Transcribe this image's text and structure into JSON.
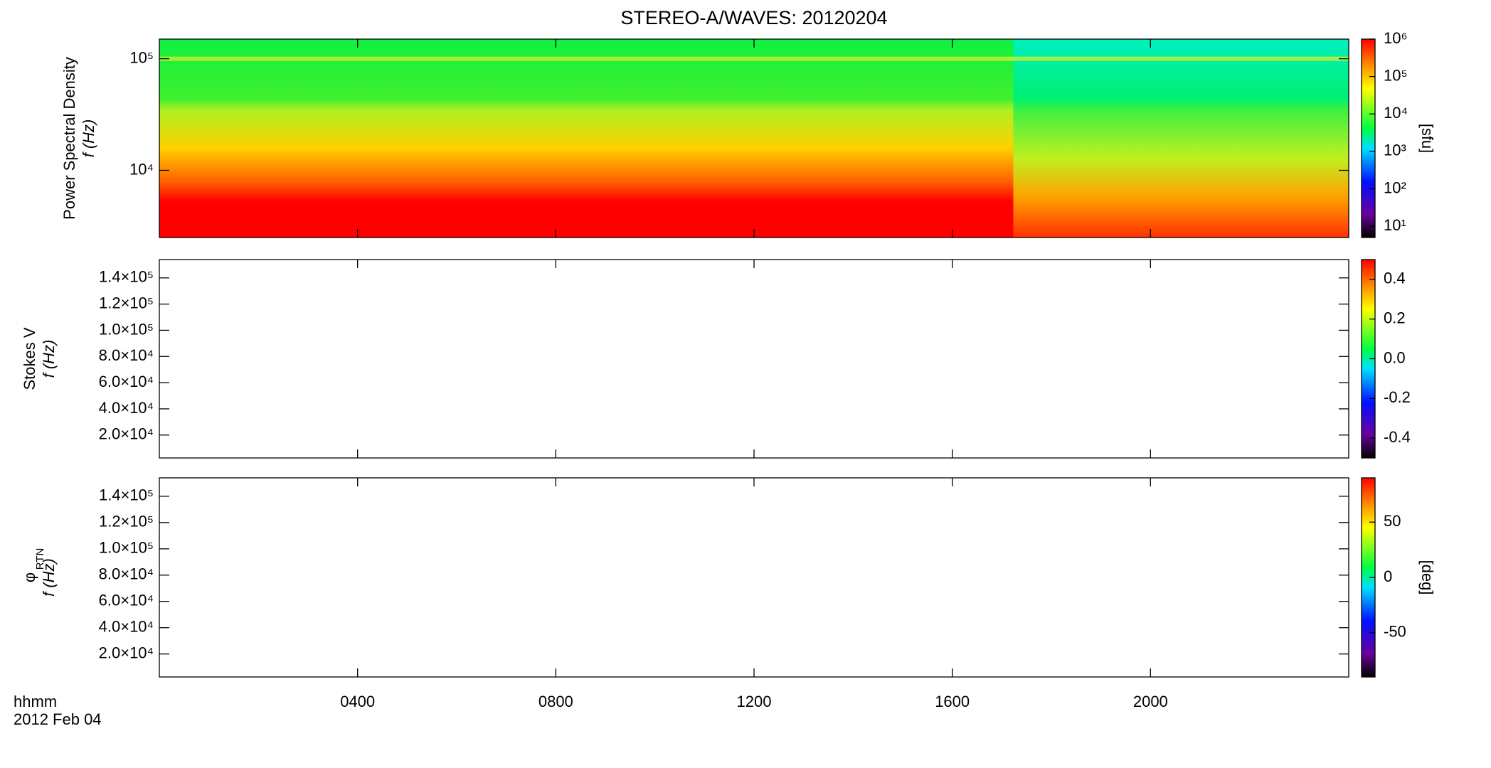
{
  "title": "STEREO-A/WAVES: 20120204",
  "x_axis_label": "hhmm",
  "date_label": "2012 Feb 04",
  "chart_data": [
    {
      "type": "heatmap",
      "ylabel": [
        "Power Spectral Density",
        "f (Hz)"
      ],
      "ylog": true,
      "xlim": [
        0,
        24
      ],
      "xticks": [
        {
          "value": 4,
          "label": "0400"
        },
        {
          "value": 8,
          "label": "0800"
        },
        {
          "value": 12,
          "label": "1200"
        },
        {
          "value": 16,
          "label": "1600"
        },
        {
          "value": 20,
          "label": "2000"
        }
      ],
      "ylim": [
        2500,
        150000
      ],
      "yticks": [
        {
          "value": 10000,
          "label": "10⁴"
        },
        {
          "value": 100000,
          "label": "10⁵"
        }
      ],
      "colorbar": {
        "label": "[sfu]",
        "log": true,
        "lim": [
          5,
          1000000
        ],
        "ticks": [
          {
            "value": 10,
            "label": "10¹"
          },
          {
            "value": 100,
            "label": "10²"
          },
          {
            "value": 1000,
            "label": "10³"
          },
          {
            "value": 10000,
            "label": "10⁴"
          },
          {
            "value": 100000,
            "label": "10⁵"
          },
          {
            "value": 1000000,
            "label": "10⁶"
          }
        ]
      }
    },
    {
      "type": "heatmap",
      "ylabel": [
        "Stokes V",
        "f (Hz)"
      ],
      "ylog": false,
      "xlim": [
        0,
        24
      ],
      "xticks": [
        {
          "value": 4,
          "label": "0400"
        },
        {
          "value": 8,
          "label": "0800"
        },
        {
          "value": 12,
          "label": "1200"
        },
        {
          "value": 16,
          "label": "1600"
        },
        {
          "value": 20,
          "label": "2000"
        }
      ],
      "ylim": [
        2500,
        154000
      ],
      "yticks": [
        {
          "value": 20000,
          "label": "2.0×10⁴"
        },
        {
          "value": 40000,
          "label": "4.0×10⁴"
        },
        {
          "value": 60000,
          "label": "6.0×10⁴"
        },
        {
          "value": 80000,
          "label": "8.0×10⁴"
        },
        {
          "value": 100000,
          "label": "1.0×10⁵"
        },
        {
          "value": 120000,
          "label": "1.2×10⁵"
        },
        {
          "value": 140000,
          "label": "1.4×10⁵"
        }
      ],
      "colorbar": {
        "log": false,
        "lim": [
          -0.5,
          0.5
        ],
        "ticks": [
          -0.4,
          -0.2,
          {
            "value": 0,
            "label": "0.0"
          },
          0.2,
          0.4
        ]
      }
    },
    {
      "type": "heatmap",
      "ylabel": [
        "φ",
        "f (Hz)"
      ],
      "ylabel_subscript": "RTN",
      "ylog": false,
      "xlim": [
        0,
        24
      ],
      "xticks": [
        {
          "value": 4,
          "label": "0400"
        },
        {
          "value": 8,
          "label": "0800"
        },
        {
          "value": 12,
          "label": "1200"
        },
        {
          "value": 16,
          "label": "1600"
        },
        {
          "value": 20,
          "label": "2000"
        }
      ],
      "ylim": [
        2500,
        154000
      ],
      "yticks": [
        {
          "value": 20000,
          "label": "2.0×10⁴"
        },
        {
          "value": 40000,
          "label": "4.0×10⁴"
        },
        {
          "value": 60000,
          "label": "6.0×10⁴"
        },
        {
          "value": 80000,
          "label": "8.0×10⁴"
        },
        {
          "value": 100000,
          "label": "1.0×10⁵"
        },
        {
          "value": 120000,
          "label": "1.2×10⁵"
        },
        {
          "value": 140000,
          "label": "1.4×10⁵"
        }
      ],
      "colorbar": {
        "label": "[deg]",
        "log": false,
        "lim": [
          -90,
          90
        ],
        "ticks": [
          -50,
          0,
          50
        ]
      }
    }
  ]
}
